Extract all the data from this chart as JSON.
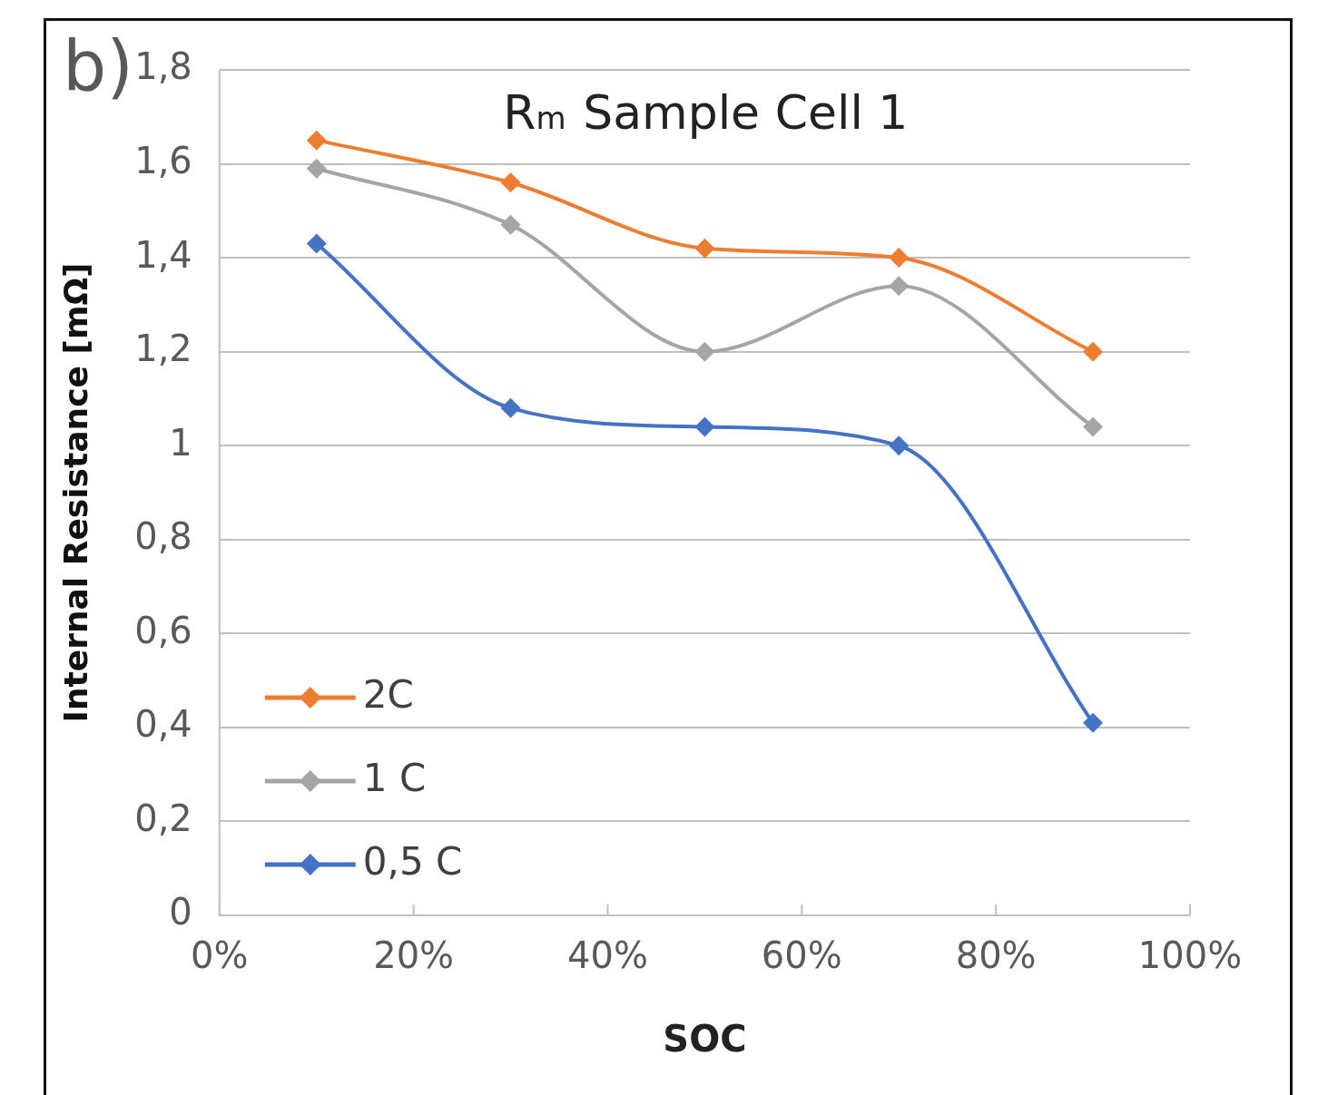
{
  "chart_data": {
    "type": "line",
    "title": "R$_{m}$ Sample Cell 1",
    "xlabel": "SOC",
    "ylabel": "Internal Resistance [mΩ]",
    "annotations": [
      "b)"
    ],
    "x": [
      10,
      30,
      50,
      70,
      90
    ],
    "series": [
      {
        "name": "2C",
        "color": "#ed7d31",
        "values": [
          1.65,
          1.56,
          1.42,
          1.4,
          1.2
        ]
      },
      {
        "name": "1 C",
        "color": "#a5a5a5",
        "values": [
          1.59,
          1.47,
          1.2,
          1.34,
          1.04
        ]
      },
      {
        "name": "0,5 C",
        "color": "#4472c4",
        "values": [
          1.43,
          1.08,
          1.04,
          1.0,
          0.41
        ]
      }
    ],
    "xlim": [
      0,
      100
    ],
    "xticks": [
      {
        "value": 0,
        "label": "0%"
      },
      {
        "value": 20,
        "label": "20%"
      },
      {
        "value": 40,
        "label": "40%"
      },
      {
        "value": 60,
        "label": "60%"
      },
      {
        "value": 80,
        "label": "80%"
      },
      {
        "value": 100,
        "label": "100%"
      }
    ],
    "ylim": [
      0,
      1.8
    ],
    "yticks": [
      0,
      {
        "value": 0.2,
        "label": "0,2"
      },
      {
        "value": 0.4,
        "label": "0,4"
      },
      {
        "value": 0.6,
        "label": "0,6"
      },
      {
        "value": 0.8,
        "label": "0,8"
      },
      1,
      {
        "value": 1.2,
        "label": "1,2"
      },
      {
        "value": 1.4,
        "label": "1,4"
      },
      {
        "value": 1.6,
        "label": "1,6"
      },
      {
        "value": 1.8,
        "label": "1,8"
      }
    ],
    "grid": "y",
    "legend": "bottom left",
    "marker": "diamond",
    "line_style": "solid"
  }
}
